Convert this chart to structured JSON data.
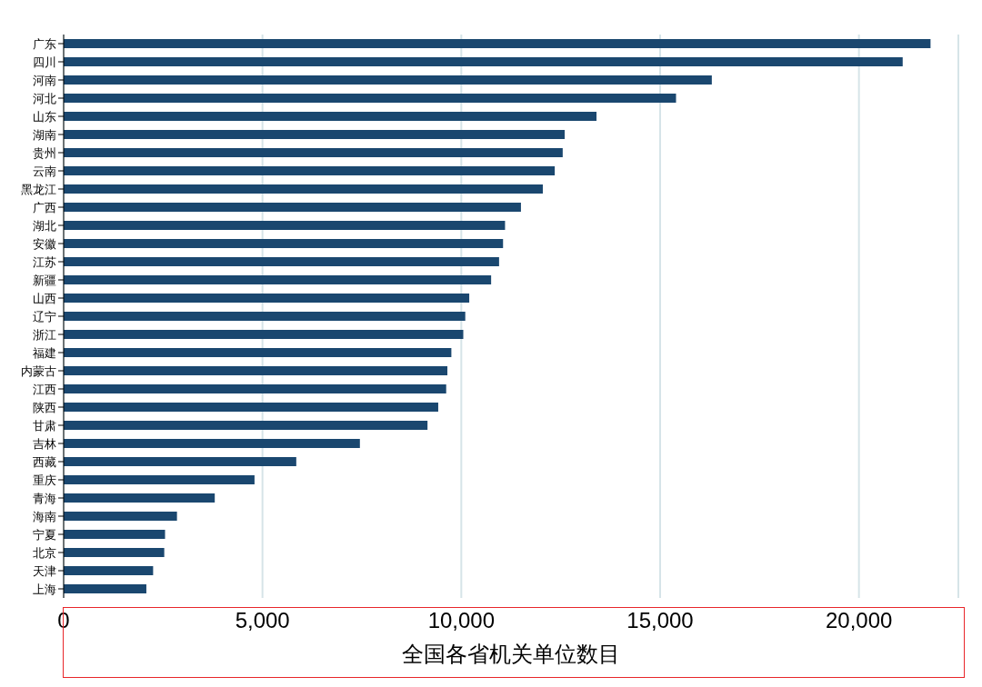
{
  "chart_data": {
    "type": "bar",
    "orientation": "horizontal",
    "xlabel": "全国各省机关单位数目",
    "categories": [
      "广东",
      "四川",
      "河南",
      "河北",
      "山东",
      "湖南",
      "贵州",
      "云南",
      "黑龙江",
      "广西",
      "湖北",
      "安徽",
      "江苏",
      "新疆",
      "山西",
      "辽宁",
      "浙江",
      "福建",
      "内蒙古",
      "江西",
      "陕西",
      "甘肃",
      "吉林",
      "西藏",
      "重庆",
      "青海",
      "海南",
      "宁夏",
      "北京",
      "天津",
      "上海"
    ],
    "values": [
      21800,
      21100,
      16300,
      15400,
      13400,
      12600,
      12550,
      12350,
      12050,
      11500,
      11100,
      11050,
      10950,
      10750,
      10200,
      10100,
      10050,
      9750,
      9650,
      9620,
      9420,
      9150,
      7450,
      5850,
      4800,
      3800,
      2850,
      2550,
      2530,
      2250,
      2080
    ],
    "color": "#1a476f",
    "xlim": [
      0,
      22500
    ],
    "xticks": [
      0,
      {
        "value": 5000,
        "label": "5,000"
      },
      {
        "value": 10000,
        "label": "10,000"
      },
      {
        "value": 15000,
        "label": "15,000"
      },
      {
        "value": 20000,
        "label": "20,000"
      }
    ],
    "grid": "x"
  }
}
